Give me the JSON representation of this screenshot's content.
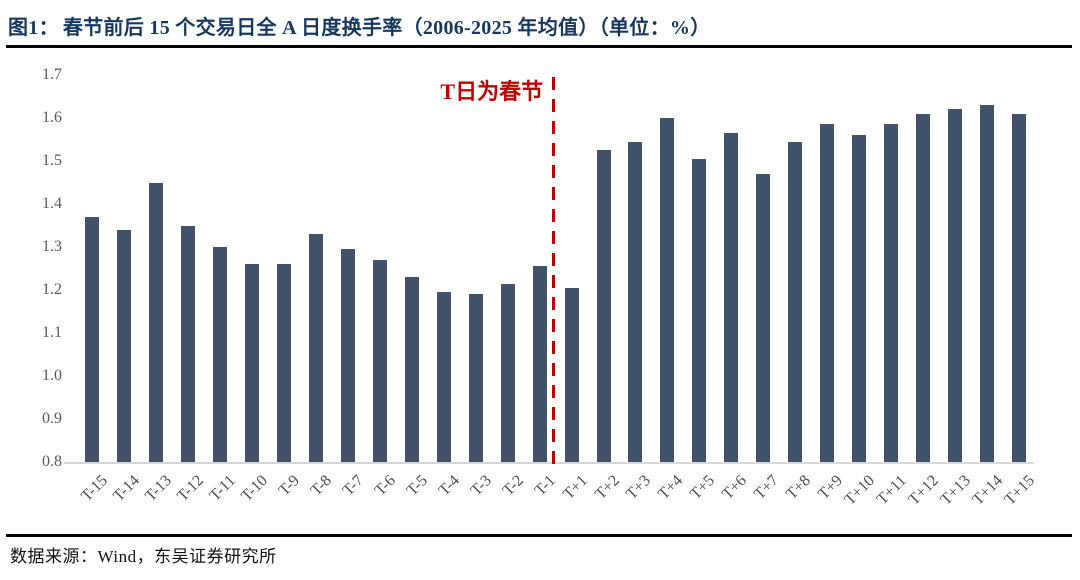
{
  "header": {
    "figure_label": "图1：",
    "title": "春节前后 15 个交易日全 A 日度换手率（2006-2025 年均值）（单位：%）"
  },
  "chart_data": {
    "type": "bar",
    "title": "春节前后 15 个交易日全 A 日度换手率（2006-2025 年均值）",
    "unit": "%",
    "categories": [
      "T-15",
      "T-14",
      "T-13",
      "T-12",
      "T-11",
      "T-10",
      "T-9",
      "T-8",
      "T-7",
      "T-6",
      "T-5",
      "T-4",
      "T-3",
      "T-2",
      "T-1",
      "T+1",
      "T+2",
      "T+3",
      "T+4",
      "T+5",
      "T+6",
      "T+7",
      "T+8",
      "T+9",
      "T+10",
      "T+11",
      "T+12",
      "T+13",
      "T+14",
      "T+15"
    ],
    "values": [
      1.37,
      1.34,
      1.45,
      1.35,
      1.3,
      1.26,
      1.26,
      1.33,
      1.295,
      1.27,
      1.23,
      1.195,
      1.19,
      1.215,
      1.255,
      1.205,
      1.525,
      1.545,
      1.6,
      1.505,
      1.565,
      1.47,
      1.545,
      1.585,
      1.56,
      1.585,
      1.61,
      1.62,
      1.63,
      1.61
    ],
    "xlabel": "",
    "ylabel": "",
    "ylim": [
      0.8,
      1.7
    ],
    "yticks": [
      "1.7",
      "1.6",
      "1.5",
      "1.4",
      "1.3",
      "1.2",
      "1.1",
      "1.0",
      "0.9",
      "0.8"
    ],
    "grid": false,
    "legend": null,
    "annotation": {
      "text": "T日为春节",
      "divider_after_category": "T-1"
    },
    "colors": {
      "bar": "#42526b",
      "annotation": "#c00000",
      "title": "#17375e",
      "axis_text": "#595959",
      "xtick_text": "#4d4d4d",
      "baseline": "#d9d9d9"
    }
  },
  "footer": {
    "source": "数据来源：Wind，东吴证券研究所"
  }
}
